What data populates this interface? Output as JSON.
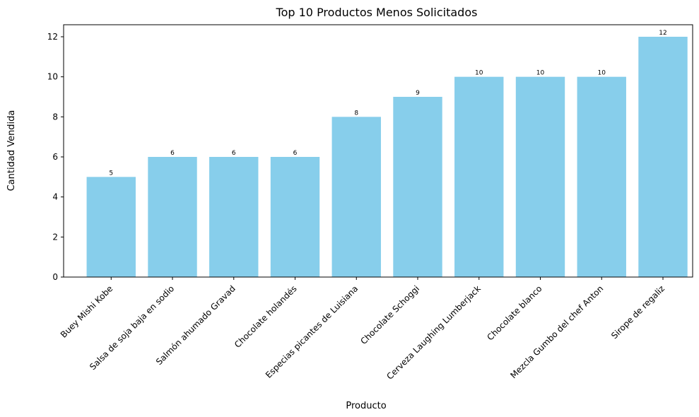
{
  "chart_data": {
    "type": "bar",
    "title": "Top 10 Productos Menos Solicitados",
    "xlabel": "Producto",
    "ylabel": "Cantidad Vendida",
    "categories": [
      "Buey Mishi Kobe",
      "Salsa de soja baja en sodio",
      "Salmón ahumado Gravad",
      "Chocolate holandés",
      "Especias picantes de Luisiana",
      "Chocolate Schoggi",
      "Cerveza Laughing Lumberjack",
      "Chocolate blanco",
      "Mezcla Gumbo del chef Anton",
      "Sirope de regaliz"
    ],
    "values": [
      5,
      6,
      6,
      6,
      8,
      9,
      10,
      10,
      10,
      12
    ],
    "data_labels": [
      "5",
      "6",
      "6",
      "6",
      "8",
      "9",
      "10",
      "10",
      "10",
      "12"
    ],
    "ylim": [
      0,
      12.6
    ],
    "yticks": [
      0,
      2,
      4,
      6,
      8,
      10,
      12
    ],
    "ytick_labels": [
      "0",
      "2",
      "4",
      "6",
      "8",
      "10",
      "12"
    ],
    "bar_color": "#87ceeb",
    "grid": false,
    "legend": "none"
  }
}
